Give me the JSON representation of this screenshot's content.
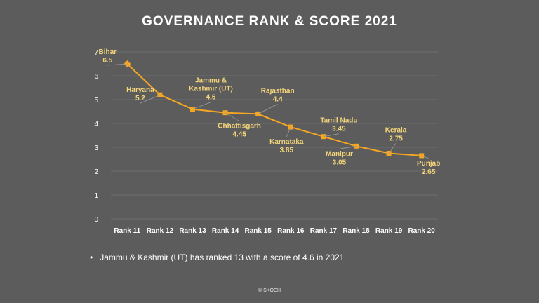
{
  "title": "GOVERNANCE RANK & SCORE 2021",
  "chart_data": {
    "type": "line",
    "categories": [
      "Rank 11",
      "Rank 12",
      "Rank 13",
      "Rank 14",
      "Rank 15",
      "Rank 16",
      "Rank 17",
      "Rank 18",
      "Rank 19",
      "Rank 20"
    ],
    "series": [
      {
        "values": [
          6.5,
          5.2,
          4.6,
          4.45,
          4.4,
          3.85,
          3.45,
          3.05,
          2.75,
          2.65
        ]
      }
    ],
    "point_labels": [
      {
        "name": "Bihar",
        "value": "6.5",
        "anchor": "above-left"
      },
      {
        "name": "Haryana",
        "value": "5.2",
        "anchor": "left"
      },
      {
        "name": "Jammu &\nKashmir (UT)",
        "value": "4.6",
        "anchor": "above"
      },
      {
        "name": "Chhattisgarh",
        "value": "4.45",
        "anchor": "below"
      },
      {
        "name": "Rajasthan",
        "value": "4.4",
        "anchor": "above"
      },
      {
        "name": "Karnataka",
        "value": "3.85",
        "anchor": "below"
      },
      {
        "name": "Tamil Nadu",
        "value": "3.45",
        "anchor": "above"
      },
      {
        "name": "Manipur",
        "value": "3.05",
        "anchor": "below"
      },
      {
        "name": "Kerala",
        "value": "2.75",
        "anchor": "above"
      },
      {
        "name": "Punjab",
        "value": "2.65",
        "anchor": "below"
      }
    ],
    "ylim": [
      0,
      7
    ],
    "yticks": [
      0,
      1,
      2,
      3,
      4,
      5,
      6,
      7
    ],
    "grid": true,
    "colors": {
      "line": "#f5a623",
      "label": "#f5d67a",
      "grid": "#6e6e6e",
      "axis_text": "#ffffff"
    }
  },
  "bullet_text": "Jammu & Kashmir (UT) has ranked 13 with a score of 4.6 in 2021",
  "footer": "© SKOCH"
}
